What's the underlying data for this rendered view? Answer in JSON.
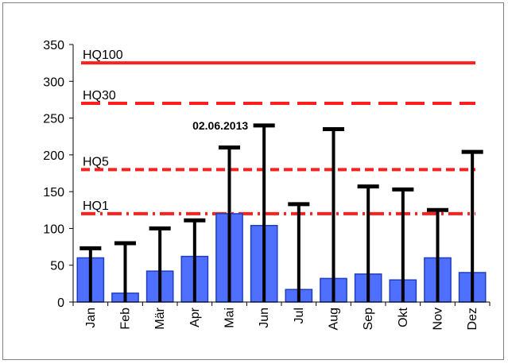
{
  "chart_data": {
    "type": "bar",
    "title": "",
    "xlabel": "",
    "ylabel": "",
    "ylim": [
      0,
      350
    ],
    "yticks": [
      0,
      50,
      100,
      150,
      200,
      250,
      300,
      350
    ],
    "categories": [
      "Jan",
      "Feb",
      "Mär",
      "Apr",
      "Mai",
      "Jun",
      "Jul",
      "Aug",
      "Sep",
      "Okt",
      "Nov",
      "Dez"
    ],
    "series": [
      {
        "values": [
          60,
          12,
          42,
          62,
          120,
          104,
          17,
          32,
          38,
          30,
          60,
          40
        ]
      }
    ],
    "max_values": [
      73,
      80,
      100,
      111,
      210,
      240,
      133,
      235,
      157,
      153,
      125,
      204
    ],
    "reference_lines": [
      {
        "label": "HQ100",
        "value": 325,
        "style": "solid"
      },
      {
        "label": "HQ30",
        "value": 270,
        "style": "dashed"
      },
      {
        "label": "HQ5",
        "value": 180,
        "style": "short-dashed"
      },
      {
        "label": "HQ1",
        "value": 120,
        "style": "dash-dot"
      }
    ],
    "annotations": [
      {
        "text": "02.06.2013",
        "category": "Jun"
      }
    ],
    "grid": false,
    "legend": "none",
    "colors": {
      "bar_fill": "#4f6fff",
      "bar_stroke": "#1f3fbf",
      "max_marker": "#000000",
      "reference_line": "#ff1f1f",
      "axis": "#000000"
    }
  }
}
